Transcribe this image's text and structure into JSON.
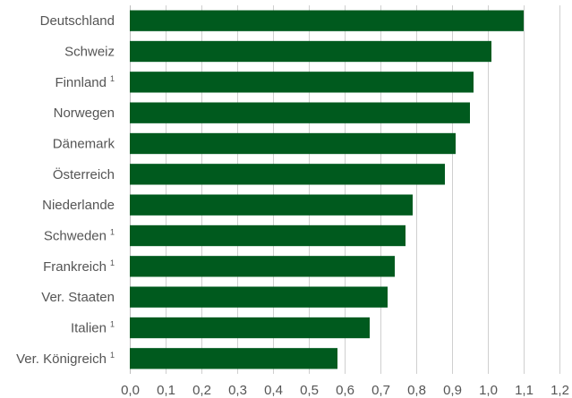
{
  "chart_data": {
    "type": "bar",
    "orientation": "horizontal",
    "title": "",
    "xlabel": "",
    "ylabel": "",
    "categories": [
      {
        "name": "Deutschland",
        "note": ""
      },
      {
        "name": "Schweiz",
        "note": ""
      },
      {
        "name": "Finnland",
        "note": "1"
      },
      {
        "name": "Norwegen",
        "note": ""
      },
      {
        "name": "Dänemark",
        "note": ""
      },
      {
        "name": "Österreich",
        "note": ""
      },
      {
        "name": "Niederlande",
        "note": ""
      },
      {
        "name": "Schweden",
        "note": "1"
      },
      {
        "name": "Frankreich",
        "note": "1"
      },
      {
        "name": "Ver. Staaten",
        "note": ""
      },
      {
        "name": "Italien",
        "note": "1"
      },
      {
        "name": "Ver. Königreich",
        "note": "1"
      }
    ],
    "values": [
      1.1,
      1.01,
      0.96,
      0.95,
      0.91,
      0.88,
      0.79,
      0.77,
      0.74,
      0.72,
      0.67,
      0.58
    ],
    "xlim": [
      0,
      1.2
    ],
    "x_ticks": [
      "0,0",
      "0,1",
      "0,2",
      "0,3",
      "0,4",
      "0,5",
      "0,6",
      "0,7",
      "0,8",
      "0,9",
      "1,0",
      "1,1",
      "1,2"
    ],
    "grid": "vertical",
    "legend": "none",
    "bar_color": "#005a1e"
  }
}
